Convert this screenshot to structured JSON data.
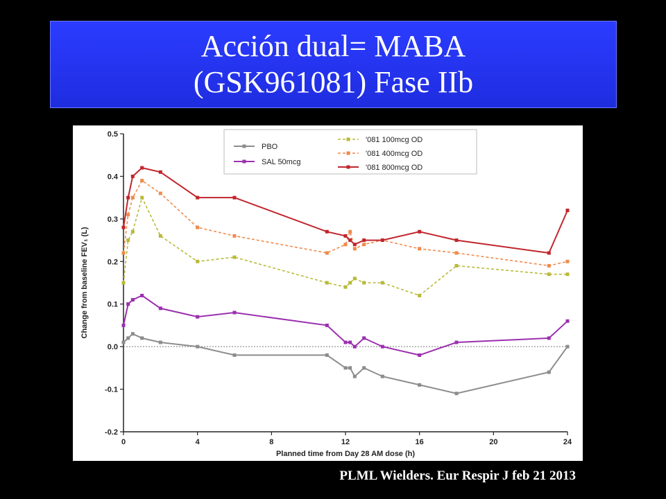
{
  "slide": {
    "title_line1": "Acción dual= MABA",
    "title_line2": "(GSK961081) Fase IIb",
    "citation": "PLML Wielders. Eur Respir J feb 21 2013"
  },
  "chart_data": {
    "type": "line",
    "xlabel": "Planned time from Day 28 AM dose (h)",
    "ylabel": "Change from baseline FEV₁ (L)",
    "xlim": [
      0,
      24
    ],
    "ylim": [
      -0.2,
      0.5
    ],
    "xticks": [
      "0",
      "4",
      "8",
      "12",
      "16",
      "20",
      "24"
    ],
    "yticks": [
      "-0.2",
      "-0.1",
      "0.0",
      "0.1",
      "0.2",
      "0.3",
      "0.4",
      "0.5"
    ],
    "reference_line_y": 0,
    "legend_position": "top-right",
    "series": [
      {
        "name": "PBO",
        "color": "#8c8c8c",
        "dash": false,
        "points": [
          [
            0,
            0.01
          ],
          [
            0.25,
            0.02
          ],
          [
            0.5,
            0.03
          ],
          [
            1,
            0.02
          ],
          [
            2,
            0.01
          ],
          [
            4,
            0.0
          ],
          [
            6,
            -0.02
          ],
          [
            11,
            -0.02
          ],
          [
            12,
            -0.05
          ],
          [
            12.25,
            -0.05
          ],
          [
            12.5,
            -0.07
          ],
          [
            13,
            -0.05
          ],
          [
            14,
            -0.07
          ],
          [
            16,
            -0.09
          ],
          [
            18,
            -0.11
          ],
          [
            23,
            -0.06
          ],
          [
            24,
            0.0
          ]
        ]
      },
      {
        "name": "SAL 50mcg",
        "color": "#9b2fae",
        "dash": false,
        "points": [
          [
            0,
            0.05
          ],
          [
            0.25,
            0.1
          ],
          [
            0.5,
            0.11
          ],
          [
            1,
            0.12
          ],
          [
            2,
            0.09
          ],
          [
            4,
            0.07
          ],
          [
            6,
            0.08
          ],
          [
            11,
            0.05
          ],
          [
            12,
            0.01
          ],
          [
            12.25,
            0.01
          ],
          [
            12.5,
            0.0
          ],
          [
            13,
            0.02
          ],
          [
            14,
            0.0
          ],
          [
            16,
            -0.02
          ],
          [
            18,
            0.01
          ],
          [
            23,
            0.02
          ],
          [
            24,
            0.06
          ]
        ]
      },
      {
        "name": "'081 100mcg OD",
        "color": "#b9b93a",
        "dash": true,
        "points": [
          [
            0,
            0.15
          ],
          [
            0.25,
            0.25
          ],
          [
            0.5,
            0.27
          ],
          [
            1,
            0.35
          ],
          [
            2,
            0.26
          ],
          [
            4,
            0.2
          ],
          [
            6,
            0.21
          ],
          [
            11,
            0.15
          ],
          [
            12,
            0.14
          ],
          [
            12.25,
            0.15
          ],
          [
            12.5,
            0.16
          ],
          [
            13,
            0.15
          ],
          [
            14,
            0.15
          ],
          [
            16,
            0.12
          ],
          [
            18,
            0.19
          ],
          [
            23,
            0.17
          ],
          [
            24,
            0.17
          ]
        ]
      },
      {
        "name": "'081 400mcg OD",
        "color": "#f08a4b",
        "dash": true,
        "points": [
          [
            0,
            0.22
          ],
          [
            0.25,
            0.31
          ],
          [
            0.5,
            0.35
          ],
          [
            1,
            0.39
          ],
          [
            2,
            0.36
          ],
          [
            4,
            0.28
          ],
          [
            6,
            0.26
          ],
          [
            11,
            0.22
          ],
          [
            12,
            0.24
          ],
          [
            12.25,
            0.27
          ],
          [
            12.5,
            0.23
          ],
          [
            13,
            0.24
          ],
          [
            14,
            0.25
          ],
          [
            16,
            0.23
          ],
          [
            18,
            0.22
          ],
          [
            23,
            0.19
          ],
          [
            24,
            0.2
          ]
        ]
      },
      {
        "name": "'081 800mcg OD",
        "color": "#c0262c",
        "dash": false,
        "points": [
          [
            0,
            0.28
          ],
          [
            0.25,
            0.35
          ],
          [
            0.5,
            0.4
          ],
          [
            1,
            0.42
          ],
          [
            2,
            0.41
          ],
          [
            4,
            0.35
          ],
          [
            6,
            0.35
          ],
          [
            11,
            0.27
          ],
          [
            12,
            0.26
          ],
          [
            12.25,
            0.25
          ],
          [
            12.5,
            0.24
          ],
          [
            13,
            0.25
          ],
          [
            14,
            0.25
          ],
          [
            16,
            0.27
          ],
          [
            18,
            0.25
          ],
          [
            23,
            0.22
          ],
          [
            24,
            0.32
          ]
        ]
      }
    ]
  }
}
